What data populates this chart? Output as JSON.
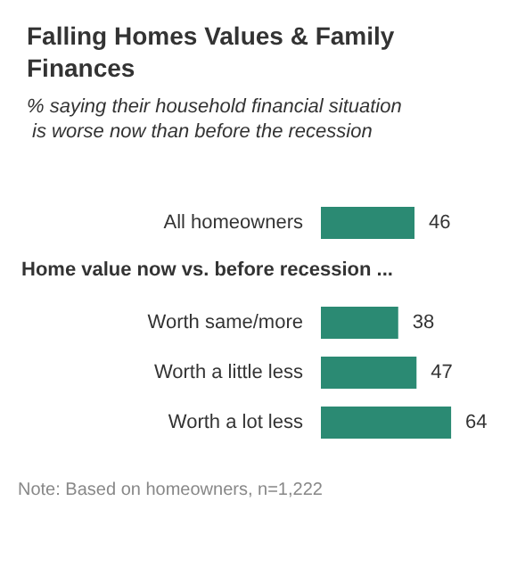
{
  "chart_data": {
    "type": "bar",
    "orientation": "horizontal",
    "title": "Falling Homes Values & Family Finances",
    "subtitle": "% saying their household financial situation is worse now than before the recession",
    "categories": [
      "All homeowners",
      null,
      "Worth same/more",
      "Worth a little less",
      "Worth a lot less"
    ],
    "values": [
      46,
      null,
      38,
      47,
      64
    ],
    "color": "#2b8a73",
    "data_labels": true,
    "annotations": [
      "Home value now vs. before recession ...",
      "Note: Based on homeowners, n=1,222"
    ]
  }
}
